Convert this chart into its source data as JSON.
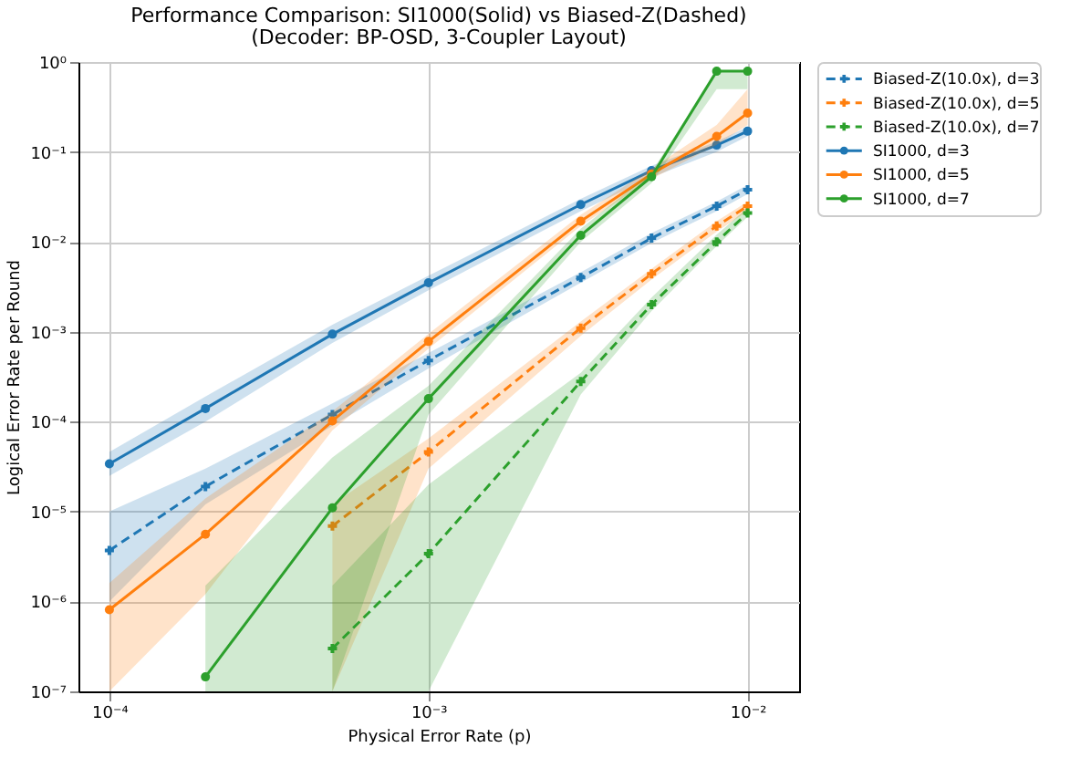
{
  "chart_data": {
    "type": "line",
    "title": "Performance Comparison: SI1000(Solid) vs Biased-Z(Dashed)",
    "subtitle": "(Decoder: BP-OSD, 3-Coupler Layout)",
    "xlabel": "Physical Error Rate (p)",
    "ylabel": "Logical Error Rate per Round",
    "log": "xy",
    "grid": true,
    "legend": "right",
    "x": [
      0.0001,
      0.0002,
      0.0005,
      0.001,
      0.003,
      0.005,
      0.008,
      0.01
    ],
    "xlim": [
      8e-05,
      0.0145
    ],
    "ylim": [
      1e-07,
      1
    ],
    "xticks": [
      {
        "value": 0.0001,
        "label": "10⁻⁴"
      },
      {
        "value": 0.001,
        "label": "10⁻³"
      },
      {
        "value": 0.01,
        "label": "10⁻²"
      }
    ],
    "yticks": [
      {
        "value": 1e-07,
        "label": "10⁻⁷"
      },
      {
        "value": 1e-06,
        "label": "10⁻⁶"
      },
      {
        "value": 1e-05,
        "label": "10⁻⁵"
      },
      {
        "value": 0.0001,
        "label": "10⁻⁴"
      },
      {
        "value": 0.001,
        "label": "10⁻³"
      },
      {
        "value": 0.01,
        "label": "10⁻²"
      },
      {
        "value": 0.1,
        "label": "10⁻¹"
      },
      {
        "value": 1,
        "label": "10⁰"
      }
    ],
    "series": [
      {
        "name": "Biased-Z(10.0x), d=3",
        "color": "#1f77b4",
        "line_style": "dashed",
        "marker": "cross",
        "values": [
          3.7e-06,
          1.9e-05,
          0.00012,
          0.00048,
          0.004,
          0.011,
          0.025,
          0.038
        ],
        "lower": [
          1e-06,
          1.2e-05,
          9e-05,
          0.00039,
          0.0035,
          0.0097,
          0.022,
          0.034
        ],
        "upper": [
          1e-05,
          3e-05,
          0.00016,
          0.00058,
          0.0046,
          0.0125,
          0.028,
          0.043
        ]
      },
      {
        "name": "Biased-Z(10.0x), d=5",
        "color": "#ff7f0e",
        "line_style": "dashed",
        "marker": "cross",
        "values": [
          null,
          null,
          6.9e-06,
          4.6e-05,
          0.0011,
          0.0044,
          0.015,
          0.025
        ],
        "lower": [
          null,
          null,
          1e-07,
          3e-05,
          0.0009,
          0.0038,
          0.013,
          0.022
        ],
        "upper": [
          null,
          null,
          1.2e-05,
          6.5e-05,
          0.0013,
          0.005,
          0.017,
          0.028
        ]
      },
      {
        "name": "Biased-Z(10.0x), d=7",
        "color": "#2ca02c",
        "line_style": "dashed",
        "marker": "cross",
        "values": [
          null,
          null,
          3e-07,
          3.4e-06,
          0.00028,
          0.002,
          0.01,
          0.021
        ],
        "lower": [
          null,
          null,
          1e-07,
          1e-07,
          0.0002,
          0.0017,
          0.009,
          0.019
        ],
        "upper": [
          null,
          null,
          1.5e-06,
          2e-05,
          0.00035,
          0.0024,
          0.012,
          0.024
        ]
      },
      {
        "name": "SI1000, d=3",
        "color": "#1f77b4",
        "line_style": "solid",
        "marker": "circle",
        "values": [
          3.4e-05,
          0.00014,
          0.00094,
          0.0035,
          0.026,
          0.062,
          0.119,
          0.17
        ],
        "lower": [
          2.5e-05,
          0.0001,
          0.00075,
          0.0029,
          0.022,
          0.052,
          0.1,
          0.15
        ],
        "upper": [
          4.6e-05,
          0.00019,
          0.0012,
          0.0042,
          0.03,
          0.07,
          0.13,
          0.19
        ]
      },
      {
        "name": "SI1000, d=5",
        "color": "#ff7f0e",
        "line_style": "solid",
        "marker": "circle",
        "values": [
          8.1e-07,
          5.6e-06,
          0.000102,
          0.00078,
          0.017,
          0.057,
          0.149,
          0.27
        ],
        "lower": [
          1e-07,
          1.2e-06,
          8e-05,
          0.00065,
          0.015,
          0.05,
          0.12,
          0.2
        ],
        "upper": [
          1.6e-06,
          1.4e-05,
          0.00013,
          0.00095,
          0.02,
          0.065,
          0.2,
          0.5
        ]
      },
      {
        "name": "SI1000, d=7",
        "color": "#2ca02c",
        "line_style": "solid",
        "marker": "circle",
        "values": [
          null,
          1.45e-07,
          1.1e-05,
          0.00018,
          0.0118,
          0.053,
          0.79,
          0.79
        ],
        "lower": [
          null,
          1e-07,
          1e-07,
          0.00012,
          0.01,
          0.045,
          0.5,
          0.5
        ],
        "upper": [
          null,
          1.5e-06,
          4e-05,
          0.00025,
          0.014,
          0.06,
          0.79,
          0.79
        ]
      }
    ]
  }
}
